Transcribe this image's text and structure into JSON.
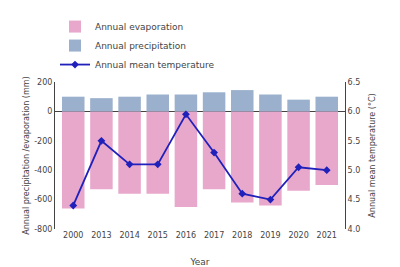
{
  "chart_data": {
    "type": "bar",
    "xlabel": "Year",
    "ylabel": "Annual precipitation /evaporation (mm)",
    "y2label": "Annual mean temperature (°C)",
    "categories": [
      "2000",
      "2013",
      "2014",
      "2015",
      "2016",
      "2017",
      "2018",
      "2019",
      "2020",
      "2021"
    ],
    "series": [
      {
        "name": "Annual evaporation",
        "color": "#e8a8cc",
        "values": [
          -660,
          -530,
          -560,
          -560,
          -650,
          -530,
          -620,
          -640,
          -540,
          -500
        ]
      },
      {
        "name": "Annual precipitation",
        "color": "#9ab0cc",
        "values": [
          100,
          90,
          100,
          115,
          115,
          130,
          145,
          115,
          80,
          100
        ]
      },
      {
        "name": "Annual mean temperature",
        "type": "line",
        "color": "#2020bb",
        "marker": "diamond",
        "axis": "y2",
        "values": [
          4.4,
          5.5,
          5.1,
          5.1,
          5.95,
          5.3,
          4.6,
          4.5,
          5.05,
          5.0
        ]
      }
    ],
    "ylim": [
      -800,
      200
    ],
    "yticks": [
      -800,
      -600,
      -400,
      -200,
      0,
      200
    ],
    "y2lim": [
      4.0,
      6.5
    ],
    "y2ticks": [
      {
        "value": 4.0,
        "label": "4.0"
      },
      4.5,
      {
        "value": 5.0,
        "label": "5.0"
      },
      5.5,
      {
        "value": 6.0,
        "label": "6.0"
      },
      6.5
    ],
    "grid": false,
    "legend": "top"
  }
}
